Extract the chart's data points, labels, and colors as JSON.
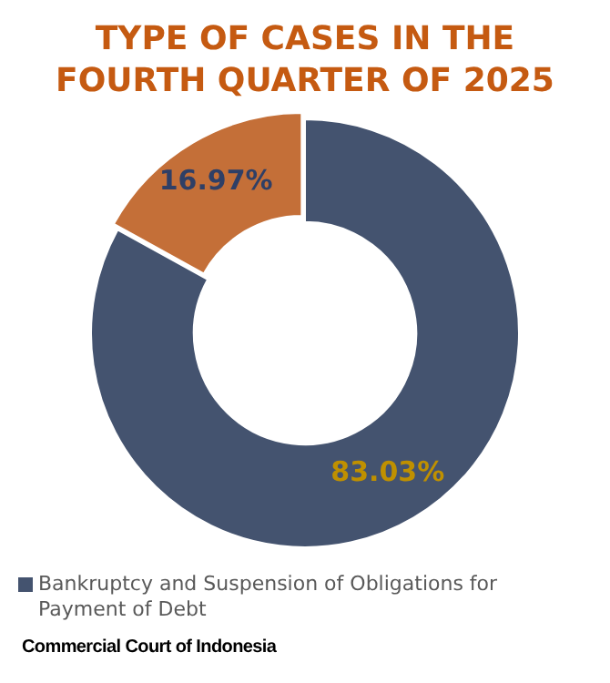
{
  "chart_data": {
    "type": "donut",
    "title": "TYPE OF CASES IN THE FOURTH QUARTER OF 2025",
    "categories": [
      "Bankruptcy and Suspension of Obligations for Payment of Debt",
      null
    ],
    "values": [
      83.03,
      16.97
    ],
    "colors": [
      "#44536f",
      "#c46f38"
    ],
    "value_labels": [
      "83.03%",
      "16.97%"
    ],
    "legend": "bottom",
    "annotations": [
      "Commercial Court of Indonesia"
    ]
  }
}
